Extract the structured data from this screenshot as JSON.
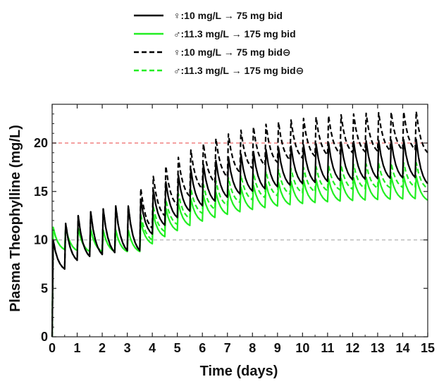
{
  "chart_data": {
    "type": "line",
    "title": "",
    "xlabel": "Time (days)",
    "ylabel": "Plasma Theophylline (mg/L)",
    "xlim": [
      0,
      15
    ],
    "ylim": [
      0,
      24
    ],
    "xticks": [
      0,
      1,
      2,
      3,
      4,
      5,
      6,
      7,
      8,
      9,
      10,
      11,
      12,
      13,
      14,
      15
    ],
    "yticks": [
      0,
      5,
      10,
      15,
      20
    ],
    "grid": false,
    "legend_position": "top",
    "reference_lines": [
      {
        "y": 20,
        "color": "#f08080",
        "style": "dashed"
      },
      {
        "y": 10,
        "color": "#bbbbbb",
        "style": "dashed"
      }
    ],
    "series": [
      {
        "name": "♀:10 mg/L → 75 mg bid",
        "color": "#000000",
        "dashed": false,
        "phase1_peaks": [
          10,
          11.7,
          12.5,
          12.9,
          13.2,
          13.5
        ],
        "phase1_troughs": [
          7,
          7.9,
          8.3,
          8.5,
          8.7,
          8.9
        ],
        "phase2_peak_start": 14.2,
        "phase2_peak_end": 20.4,
        "phase2_trough_start": 10.6,
        "phase2_trough_end": 16.5,
        "phase2_tau": 3.0,
        "final_value": 15.8
      },
      {
        "name": "♂:11.3 mg/L → 175 mg bid",
        "color": "#22ee22",
        "dashed": false,
        "phase1_peaks": [
          11.3,
          11.3,
          11.2,
          11.1,
          11.0,
          11.0
        ],
        "phase1_troughs": [
          9.0,
          8.9,
          8.8,
          8.8,
          8.8,
          8.8
        ],
        "phase2_peak_start": 11.9,
        "phase2_peak_end": 16.6,
        "phase2_trough_start": 9.6,
        "phase2_trough_end": 14.3,
        "phase2_tau": 3.0,
        "final_value": 14.1
      },
      {
        "name": "♀:10 mg/L → 75 mg bid⊖",
        "color": "#000000",
        "dashed": true,
        "phase1_peaks": [
          10,
          11.7,
          12.5,
          12.9,
          13.2,
          13.5
        ],
        "phase1_troughs": [
          7,
          7.9,
          8.3,
          8.5,
          8.7,
          8.9
        ],
        "phase2_peak_start": 15.3,
        "phase2_peak_end": 23.3,
        "phase2_trough_start": 11.2,
        "phase2_trough_end": 19.4,
        "phase2_tau": 3.0,
        "final_value": 19.0
      },
      {
        "name": "♂:11.3 mg/L → 175 mg bid⊖",
        "color": "#22ee22",
        "dashed": true,
        "phase1_peaks": [
          11.3,
          11.3,
          11.2,
          11.1,
          11.0,
          11.0
        ],
        "phase1_troughs": [
          9.0,
          8.9,
          8.8,
          8.8,
          8.8,
          8.8
        ],
        "phase2_peak_start": 12.6,
        "phase2_peak_end": 18.0,
        "phase2_trough_start": 10.0,
        "phase2_trough_end": 15.5,
        "phase2_tau": 3.0,
        "final_value": 15.3
      }
    ]
  }
}
